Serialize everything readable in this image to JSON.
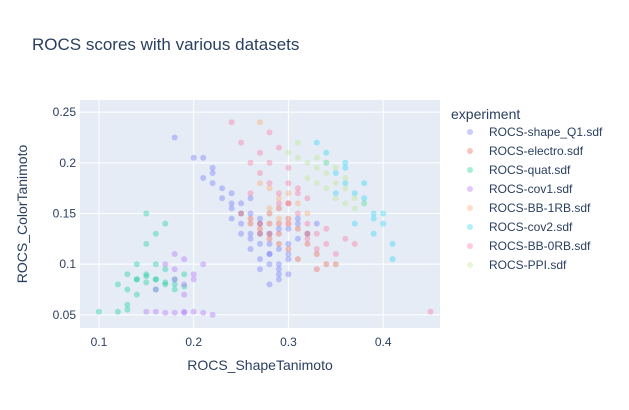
{
  "chart_data": {
    "type": "scatter",
    "title": "ROCS scores with various datasets",
    "xlabel": "ROCS_ShapeTanimoto",
    "ylabel": "ROCS_ColorTanimoto",
    "xlim": [
      0.08,
      0.46
    ],
    "ylim": [
      0.037,
      0.262
    ],
    "x_ticks": [
      0.1,
      0.2,
      0.3,
      0.4
    ],
    "x_tick_labels": [
      "0.1",
      "0.2",
      "0.3",
      "0.4"
    ],
    "y_ticks": [
      0.05,
      0.1,
      0.15,
      0.2,
      0.25
    ],
    "y_tick_labels": [
      "0.05",
      "0.1",
      "0.15",
      "0.2",
      "0.25"
    ],
    "grid": true,
    "plot_background": "#e5ecf6",
    "marker_opacity": 0.35,
    "legend": {
      "title": "experiment",
      "placement": "right"
    },
    "series": [
      {
        "name": "ROCS-shape_Q1.sdf",
        "color": "#636efa",
        "x": [
          0.18,
          0.22,
          0.24,
          0.25,
          0.26,
          0.27,
          0.27,
          0.28,
          0.28,
          0.29,
          0.29,
          0.3,
          0.3,
          0.31,
          0.26,
          0.25,
          0.24,
          0.23,
          0.22,
          0.21,
          0.28,
          0.29,
          0.27,
          0.26,
          0.3,
          0.31,
          0.28,
          0.27,
          0.29,
          0.3,
          0.26,
          0.25,
          0.24,
          0.28,
          0.27,
          0.29,
          0.3,
          0.32,
          0.31,
          0.33,
          0.2,
          0.21,
          0.23,
          0.25,
          0.27,
          0.29,
          0.26,
          0.28,
          0.24,
          0.22
        ],
        "y": [
          0.225,
          0.19,
          0.17,
          0.16,
          0.15,
          0.14,
          0.13,
          0.12,
          0.11,
          0.1,
          0.09,
          0.12,
          0.105,
          0.14,
          0.13,
          0.14,
          0.155,
          0.175,
          0.18,
          0.205,
          0.08,
          0.085,
          0.095,
          0.115,
          0.11,
          0.125,
          0.1,
          0.12,
          0.135,
          0.09,
          0.165,
          0.15,
          0.16,
          0.13,
          0.145,
          0.115,
          0.135,
          0.13,
          0.145,
          0.14,
          0.205,
          0.185,
          0.165,
          0.13,
          0.105,
          0.095,
          0.125,
          0.11,
          0.145,
          0.195
        ]
      },
      {
        "name": "ROCS-electro.sdf",
        "color": "#ef553b",
        "x": [
          0.25,
          0.26,
          0.27,
          0.28,
          0.29,
          0.3,
          0.31,
          0.32,
          0.33,
          0.34,
          0.27,
          0.28,
          0.29,
          0.3,
          0.26,
          0.28,
          0.3,
          0.32,
          0.31,
          0.29,
          0.27,
          0.33,
          0.35,
          0.29,
          0.28
        ],
        "y": [
          0.15,
          0.14,
          0.135,
          0.13,
          0.14,
          0.145,
          0.135,
          0.12,
          0.11,
          0.1,
          0.13,
          0.125,
          0.13,
          0.115,
          0.145,
          0.15,
          0.16,
          0.13,
          0.105,
          0.12,
          0.14,
          0.095,
          0.1,
          0.155,
          0.14
        ]
      },
      {
        "name": "ROCS-quat.sdf",
        "color": "#00cc96",
        "x": [
          0.1,
          0.12,
          0.13,
          0.14,
          0.15,
          0.16,
          0.17,
          0.18,
          0.19,
          0.15,
          0.16,
          0.17,
          0.14,
          0.15,
          0.13,
          0.16,
          0.18,
          0.17,
          0.15,
          0.14,
          0.13,
          0.12,
          0.14,
          0.16,
          0.17,
          0.18,
          0.19,
          0.16,
          0.13,
          0.15
        ],
        "y": [
          0.053,
          0.053,
          0.06,
          0.085,
          0.09,
          0.085,
          0.08,
          0.085,
          0.09,
          0.15,
          0.13,
          0.14,
          0.1,
          0.12,
          0.055,
          0.075,
          0.08,
          0.095,
          0.082,
          0.085,
          0.09,
          0.08,
          0.07,
          0.085,
          0.082,
          0.075,
          0.078,
          0.1,
          0.075,
          0.088
        ]
      },
      {
        "name": "ROCS-cov1.sdf",
        "color": "#ab63fa",
        "x": [
          0.15,
          0.16,
          0.17,
          0.18,
          0.19,
          0.2,
          0.21,
          0.17,
          0.18,
          0.19,
          0.2,
          0.18,
          0.19,
          0.2,
          0.22,
          0.19,
          0.21,
          0.16,
          0.18,
          0.19
        ],
        "y": [
          0.053,
          0.053,
          0.052,
          0.052,
          0.053,
          0.053,
          0.052,
          0.1,
          0.085,
          0.08,
          0.09,
          0.11,
          0.105,
          0.085,
          0.05,
          0.07,
          0.1,
          0.075,
          0.095,
          0.052
        ]
      },
      {
        "name": "ROCS-BB-1RB.sdf",
        "color": "#ffa15a",
        "x": [
          0.27,
          0.28,
          0.29,
          0.3,
          0.31,
          0.32,
          0.29,
          0.28,
          0.3,
          0.27
        ],
        "y": [
          0.18,
          0.175,
          0.165,
          0.17,
          0.16,
          0.15,
          0.145,
          0.155,
          0.14,
          0.24
        ]
      },
      {
        "name": "ROCS-cov2.sdf",
        "color": "#19d3f3",
        "x": [
          0.34,
          0.35,
          0.36,
          0.37,
          0.38,
          0.39,
          0.4,
          0.41,
          0.36,
          0.38,
          0.37,
          0.39,
          0.4,
          0.35,
          0.34,
          0.33,
          0.38,
          0.36,
          0.39,
          0.41
        ],
        "y": [
          0.2,
          0.19,
          0.18,
          0.17,
          0.16,
          0.15,
          0.14,
          0.12,
          0.2,
          0.165,
          0.14,
          0.13,
          0.15,
          0.17,
          0.21,
          0.22,
          0.18,
          0.195,
          0.145,
          0.105
        ]
      },
      {
        "name": "ROCS-BB-0RB.sdf",
        "color": "#ff6692",
        "x": [
          0.24,
          0.25,
          0.26,
          0.27,
          0.28,
          0.29,
          0.3,
          0.31,
          0.32,
          0.33,
          0.34,
          0.35,
          0.29,
          0.3,
          0.31,
          0.32,
          0.28,
          0.27,
          0.26,
          0.3,
          0.32,
          0.34,
          0.33,
          0.36,
          0.37,
          0.29,
          0.31,
          0.45,
          0.28,
          0.3
        ],
        "y": [
          0.24,
          0.22,
          0.2,
          0.19,
          0.18,
          0.17,
          0.16,
          0.15,
          0.14,
          0.13,
          0.12,
          0.11,
          0.215,
          0.195,
          0.175,
          0.165,
          0.2,
          0.21,
          0.17,
          0.14,
          0.125,
          0.135,
          0.115,
          0.125,
          0.12,
          0.16,
          0.17,
          0.053,
          0.23,
          0.18
        ]
      },
      {
        "name": "ROCS-PPI.sdf",
        "color": "#b6e880",
        "x": [
          0.31,
          0.32,
          0.33,
          0.34,
          0.35,
          0.36,
          0.37,
          0.38,
          0.32,
          0.33,
          0.34,
          0.35,
          0.36,
          0.37,
          0.3,
          0.31,
          0.33,
          0.35,
          0.34,
          0.36
        ],
        "y": [
          0.205,
          0.2,
          0.195,
          0.19,
          0.18,
          0.175,
          0.165,
          0.16,
          0.185,
          0.18,
          0.175,
          0.165,
          0.16,
          0.155,
          0.21,
          0.22,
          0.205,
          0.195,
          0.2,
          0.185
        ]
      }
    ]
  }
}
